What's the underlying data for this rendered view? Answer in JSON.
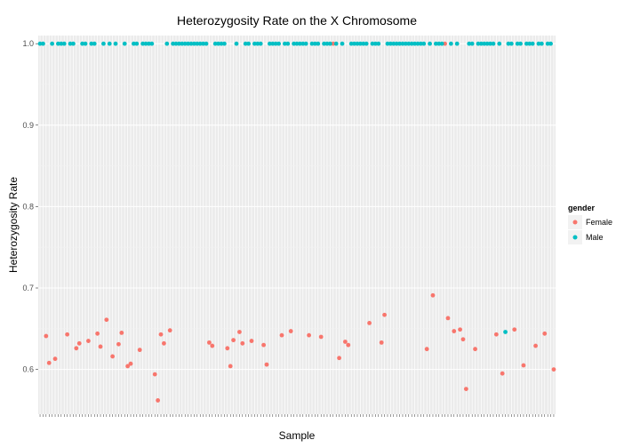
{
  "chart_data": {
    "type": "scatter",
    "title": "Heterozygosity Rate on the X Chromosome",
    "xlabel": "Sample",
    "ylabel": "Heterozygosity Rate",
    "ylim": [
      0.545,
      1.01
    ],
    "yticks": [
      0.6,
      0.7,
      0.8,
      0.9,
      1.0
    ],
    "ytick_labels": [
      "0.6",
      "0.7",
      "0.8",
      "0.9",
      "1.0"
    ],
    "x_count": 169,
    "grid": true,
    "legend": {
      "title": "gender",
      "placement": "right",
      "entries": [
        {
          "name": "Female",
          "color": "#F8766D"
        },
        {
          "name": "Male",
          "color": "#00BFC4"
        }
      ]
    },
    "series": [
      {
        "name": "Female",
        "color": "#F8766D",
        "points": [
          [
            3,
            0.641
          ],
          [
            4,
            0.608
          ],
          [
            6,
            0.613
          ],
          [
            10,
            0.643
          ],
          [
            13,
            0.626
          ],
          [
            14,
            0.632
          ],
          [
            17,
            0.635
          ],
          [
            20,
            0.644
          ],
          [
            21,
            0.628
          ],
          [
            23,
            0.661
          ],
          [
            25,
            0.616
          ],
          [
            27,
            0.631
          ],
          [
            28,
            0.645
          ],
          [
            30,
            0.604
          ],
          [
            31,
            0.607
          ],
          [
            34,
            0.624
          ],
          [
            39,
            0.594
          ],
          [
            40,
            0.562
          ],
          [
            41,
            0.643
          ],
          [
            42,
            0.632
          ],
          [
            44,
            0.648
          ],
          [
            57,
            0.633
          ],
          [
            58,
            0.629
          ],
          [
            63,
            0.626
          ],
          [
            64,
            0.604
          ],
          [
            65,
            0.636
          ],
          [
            67,
            0.646
          ],
          [
            68,
            0.632
          ],
          [
            71,
            0.635
          ],
          [
            75,
            0.63
          ],
          [
            76,
            0.606
          ],
          [
            81,
            0.642
          ],
          [
            84,
            0.647
          ],
          [
            90,
            0.642
          ],
          [
            94,
            0.64
          ],
          [
            100,
            0.614
          ],
          [
            102,
            0.634
          ],
          [
            103,
            0.63
          ],
          [
            110,
            0.657
          ],
          [
            114,
            0.633
          ],
          [
            115,
            0.667
          ],
          [
            129,
            0.625
          ],
          [
            131,
            0.691
          ],
          [
            136,
            0.663
          ],
          [
            138,
            0.647
          ],
          [
            140,
            0.649
          ],
          [
            141,
            0.637
          ],
          [
            142,
            0.576
          ],
          [
            145,
            0.625
          ],
          [
            152,
            0.643
          ],
          [
            154,
            0.595
          ],
          [
            158,
            0.649
          ],
          [
            161,
            0.605
          ],
          [
            165,
            0.629
          ],
          [
            168,
            0.644
          ],
          [
            171,
            0.6
          ],
          [
            98,
            1.0
          ],
          [
            135,
            1.0
          ]
        ]
      },
      {
        "name": "Male",
        "color": "#00BFC4",
        "points": [
          [
            155,
            0.646
          ],
          [
            1,
            1.0
          ],
          [
            2,
            1.0
          ],
          [
            5,
            1.0
          ],
          [
            7,
            1.0
          ],
          [
            8,
            1.0
          ],
          [
            9,
            1.0
          ],
          [
            11,
            1.0
          ],
          [
            12,
            1.0
          ],
          [
            15,
            1.0
          ],
          [
            16,
            1.0
          ],
          [
            18,
            1.0
          ],
          [
            19,
            1.0
          ],
          [
            22,
            1.0
          ],
          [
            24,
            1.0
          ],
          [
            26,
            1.0
          ],
          [
            29,
            1.0
          ],
          [
            32,
            1.0
          ],
          [
            33,
            1.0
          ],
          [
            35,
            1.0
          ],
          [
            36,
            1.0
          ],
          [
            37,
            1.0
          ],
          [
            38,
            1.0
          ],
          [
            43,
            1.0
          ],
          [
            45,
            1.0
          ],
          [
            46,
            1.0
          ],
          [
            47,
            1.0
          ],
          [
            48,
            1.0
          ],
          [
            49,
            1.0
          ],
          [
            50,
            1.0
          ],
          [
            51,
            1.0
          ],
          [
            52,
            1.0
          ],
          [
            53,
            1.0
          ],
          [
            54,
            1.0
          ],
          [
            55,
            1.0
          ],
          [
            56,
            1.0
          ],
          [
            59,
            1.0
          ],
          [
            60,
            1.0
          ],
          [
            61,
            1.0
          ],
          [
            62,
            1.0
          ],
          [
            66,
            1.0
          ],
          [
            69,
            1.0
          ],
          [
            70,
            1.0
          ],
          [
            72,
            1.0
          ],
          [
            73,
            1.0
          ],
          [
            74,
            1.0
          ],
          [
            77,
            1.0
          ],
          [
            78,
            1.0
          ],
          [
            79,
            1.0
          ],
          [
            80,
            1.0
          ],
          [
            82,
            1.0
          ],
          [
            83,
            1.0
          ],
          [
            85,
            1.0
          ],
          [
            86,
            1.0
          ],
          [
            87,
            1.0
          ],
          [
            88,
            1.0
          ],
          [
            89,
            1.0
          ],
          [
            91,
            1.0
          ],
          [
            92,
            1.0
          ],
          [
            93,
            1.0
          ],
          [
            95,
            1.0
          ],
          [
            96,
            1.0
          ],
          [
            97,
            1.0
          ],
          [
            99,
            1.0
          ],
          [
            101,
            1.0
          ],
          [
            104,
            1.0
          ],
          [
            105,
            1.0
          ],
          [
            106,
            1.0
          ],
          [
            107,
            1.0
          ],
          [
            108,
            1.0
          ],
          [
            109,
            1.0
          ],
          [
            111,
            1.0
          ],
          [
            112,
            1.0
          ],
          [
            113,
            1.0
          ],
          [
            116,
            1.0
          ],
          [
            117,
            1.0
          ],
          [
            118,
            1.0
          ],
          [
            119,
            1.0
          ],
          [
            120,
            1.0
          ],
          [
            121,
            1.0
          ],
          [
            122,
            1.0
          ],
          [
            123,
            1.0
          ],
          [
            124,
            1.0
          ],
          [
            125,
            1.0
          ],
          [
            126,
            1.0
          ],
          [
            127,
            1.0
          ],
          [
            128,
            1.0
          ],
          [
            130,
            1.0
          ],
          [
            132,
            1.0
          ],
          [
            133,
            1.0
          ],
          [
            134,
            1.0
          ],
          [
            137,
            1.0
          ],
          [
            139,
            1.0
          ],
          [
            143,
            1.0
          ],
          [
            144,
            1.0
          ],
          [
            146,
            1.0
          ],
          [
            147,
            1.0
          ],
          [
            148,
            1.0
          ],
          [
            149,
            1.0
          ],
          [
            150,
            1.0
          ],
          [
            151,
            1.0
          ],
          [
            153,
            1.0
          ],
          [
            156,
            1.0
          ],
          [
            157,
            1.0
          ],
          [
            159,
            1.0
          ],
          [
            160,
            1.0
          ],
          [
            162,
            1.0
          ],
          [
            163,
            1.0
          ],
          [
            164,
            1.0
          ],
          [
            166,
            1.0
          ],
          [
            167,
            1.0
          ],
          [
            169,
            1.0
          ],
          [
            170,
            1.0
          ]
        ]
      }
    ]
  }
}
